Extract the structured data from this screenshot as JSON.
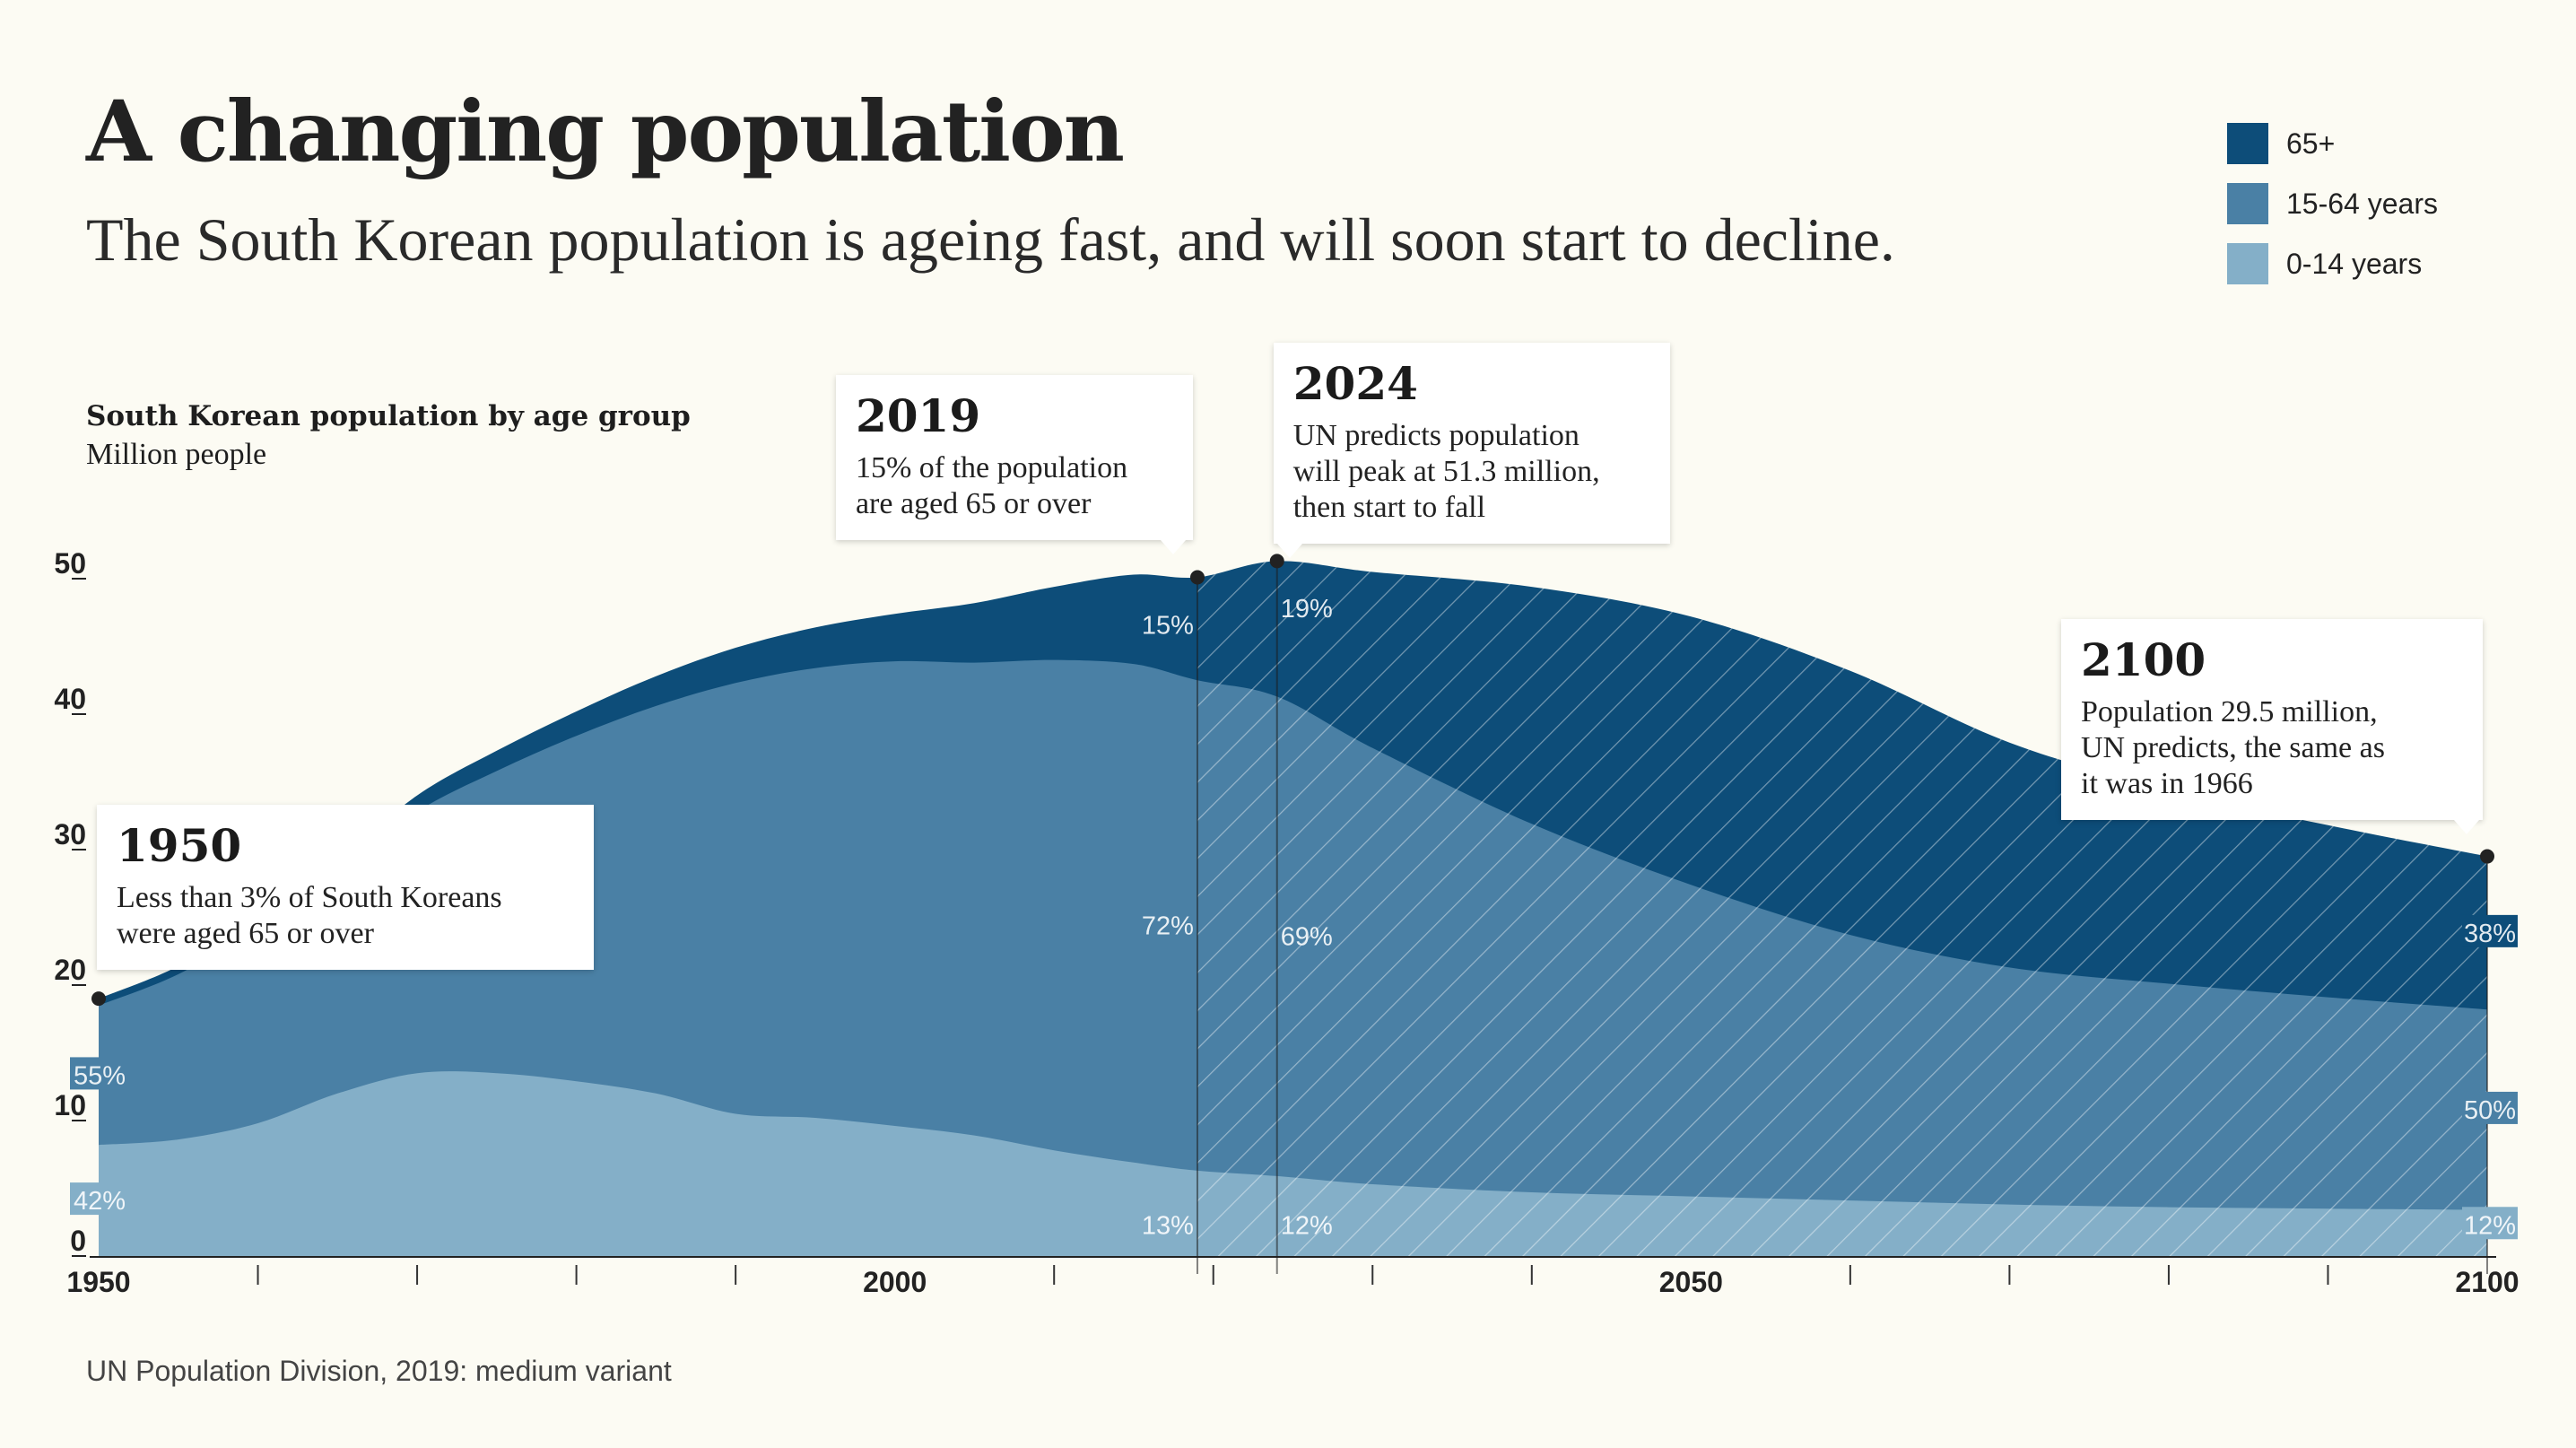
{
  "title": "A changing population",
  "subtitle": "The South Korean population is ageing fast, and will soon start to decline.",
  "legend": [
    {
      "label": "65+",
      "color": "#0d4d79"
    },
    {
      "label": "15-64 years",
      "color": "#4a80a5"
    },
    {
      "label": "0-14 years",
      "color": "#84afc8"
    }
  ],
  "chart_title": "South Korean population by age group",
  "chart_unit": "Million people",
  "source": "UN Population Division, 2019: medium variant",
  "callouts": [
    {
      "year": "1950",
      "text": "Less than 3% of South Koreans\nwere aged 65 or over"
    },
    {
      "year": "2019",
      "text": "15% of the population\nare aged 65 or over"
    },
    {
      "year": "2024",
      "text": "UN predicts population\nwill peak at 51.3 million,\nthen start to fall"
    },
    {
      "year": "2100",
      "text": "Population 29.5 million,\nUN predicts, the same as\nit was in 1966"
    }
  ],
  "chart_data": {
    "type": "area",
    "stacked": true,
    "xlim": [
      1950,
      2100
    ],
    "ylim": [
      0,
      50
    ],
    "x_tick_labels": [
      "1950",
      "2000",
      "2050",
      "2100"
    ],
    "x_minor_ticks": [
      1960,
      1970,
      1980,
      1990,
      2010,
      2020,
      2030,
      2040,
      2060,
      2070,
      2080,
      2090
    ],
    "y_ticks": [
      0,
      10,
      20,
      30,
      40,
      50
    ],
    "projection_start": 2019,
    "x": [
      1950,
      1955,
      1960,
      1965,
      1970,
      1975,
      1980,
      1985,
      1990,
      1995,
      2000,
      2005,
      2010,
      2015,
      2019,
      2024,
      2030,
      2040,
      2050,
      2060,
      2070,
      2080,
      2090,
      2100
    ],
    "series": [
      {
        "name": "0-14 years",
        "values": [
          8.2,
          8.6,
          9.8,
          12.0,
          13.5,
          13.5,
          12.9,
          12.0,
          10.5,
          10.2,
          9.6,
          8.9,
          7.8,
          6.9,
          6.3,
          5.9,
          5.3,
          4.7,
          4.4,
          4.1,
          3.8,
          3.6,
          3.5,
          3.4
        ]
      },
      {
        "name": "15-64 years",
        "values": [
          10.3,
          12.2,
          14.5,
          16.3,
          19.3,
          22.3,
          25.5,
          28.6,
          31.8,
          33.2,
          34.3,
          34.9,
          36.2,
          36.8,
          36.2,
          35.4,
          32.2,
          27.2,
          23.0,
          19.6,
          17.5,
          16.5,
          15.6,
          14.8
        ]
      },
      {
        "name": "65+",
        "values": [
          0.5,
          0.6,
          0.7,
          0.9,
          1.2,
          1.5,
          1.8,
          2.2,
          2.6,
          3.0,
          3.5,
          4.4,
          5.4,
          6.6,
          7.6,
          10.0,
          13.0,
          17.5,
          19.8,
          19.5,
          16.6,
          14.3,
          12.7,
          11.3
        ]
      }
    ],
    "share_labels": [
      {
        "x": 1950,
        "series": "15-64 years",
        "text": "55%"
      },
      {
        "x": 1950,
        "series": "0-14 years",
        "text": "42%"
      },
      {
        "x": 2019,
        "series": "65+",
        "text": "15%"
      },
      {
        "x": 2019,
        "series": "15-64 years",
        "text": "72%"
      },
      {
        "x": 2019,
        "series": "0-14 years",
        "text": "13%"
      },
      {
        "x": 2024,
        "series": "65+",
        "text": "19%"
      },
      {
        "x": 2024,
        "series": "15-64 years",
        "text": "69%"
      },
      {
        "x": 2024,
        "series": "0-14 years",
        "text": "12%"
      },
      {
        "x": 2100,
        "series": "65+",
        "text": "38%"
      },
      {
        "x": 2100,
        "series": "15-64 years",
        "text": "50%"
      },
      {
        "x": 2100,
        "series": "0-14 years",
        "text": "12%"
      }
    ]
  }
}
